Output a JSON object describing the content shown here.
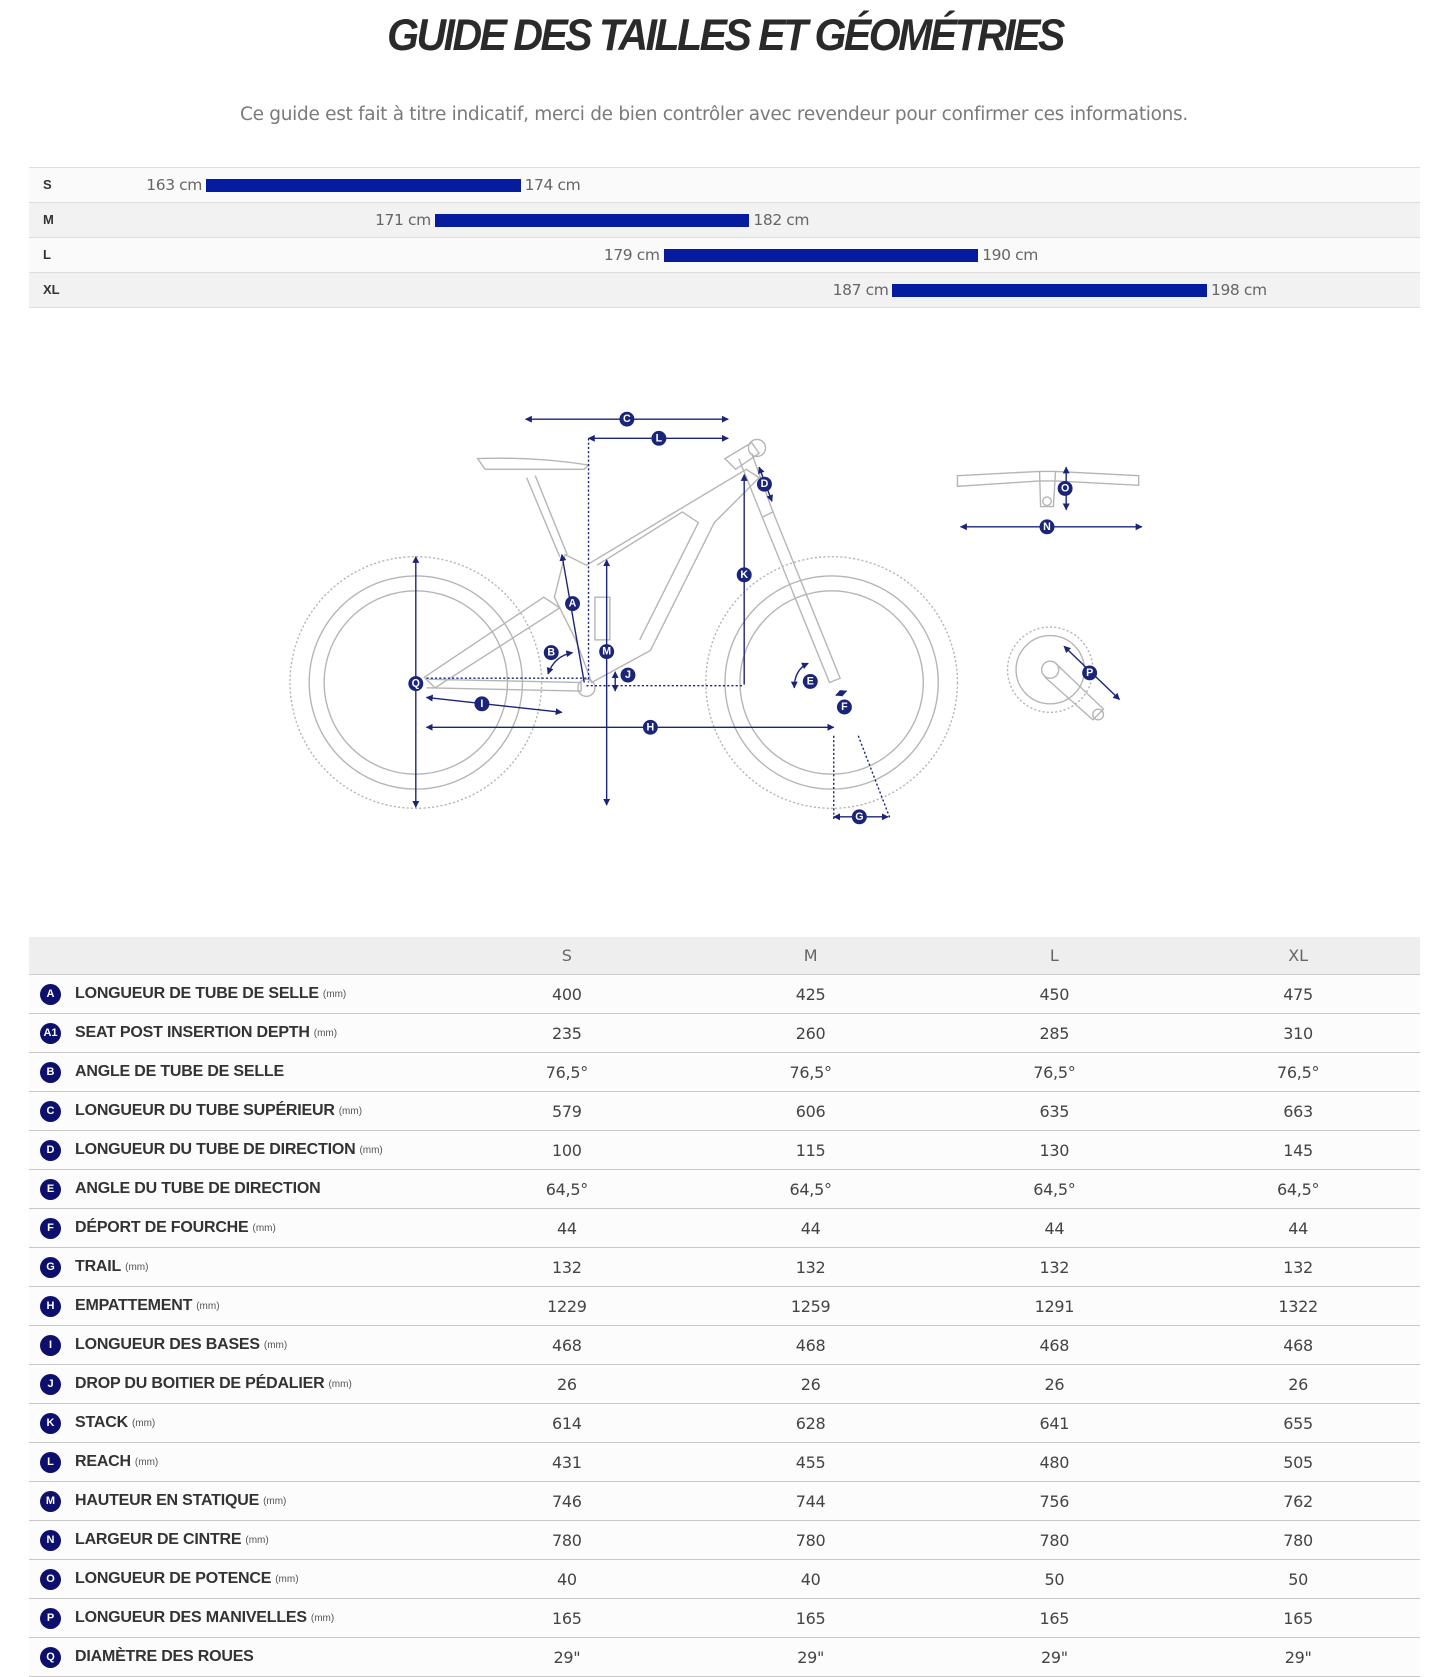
{
  "title": "GUIDE DES TAILLES ET GÉOMÉTRIES",
  "subtitle": "Ce guide est fait à titre indicatif, merci de bien contrôler avec revendeur pour confirmer ces informations.",
  "colors": {
    "bar": "#061c9e",
    "badge": "#0c0f6c",
    "diagram_line": "#1a2478"
  },
  "size_ranges": [
    {
      "size": "S",
      "min": 163,
      "max": 174,
      "min_label": "163 cm",
      "max_label": "174 cm"
    },
    {
      "size": "M",
      "min": 171,
      "max": 182,
      "min_label": "171 cm",
      "max_label": "182 cm"
    },
    {
      "size": "L",
      "min": 179,
      "max": 190,
      "min_label": "179 cm",
      "max_label": "190 cm"
    },
    {
      "size": "XL",
      "min": 187,
      "max": 198,
      "min_label": "187 cm",
      "max_label": "198 cm"
    }
  ],
  "diagram": {
    "labels": {
      "A": "A",
      "B": "B",
      "C": "C",
      "D": "D",
      "E": "E",
      "F": "F",
      "G": "G",
      "H": "H",
      "I": "I",
      "J": "J",
      "K": "K",
      "L": "L",
      "M": "M",
      "N": "N",
      "O": "O",
      "P": "P",
      "Q": "Q"
    }
  },
  "geometry": {
    "columns": [
      "S",
      "M",
      "L",
      "XL"
    ],
    "rows": [
      {
        "letter": "A",
        "label": "LONGUEUR DE TUBE DE SELLE",
        "unit": "(mm)",
        "values": [
          "400",
          "425",
          "450",
          "475"
        ]
      },
      {
        "letter": "A1",
        "label": "SEAT POST INSERTION DEPTH",
        "unit": "(mm)",
        "values": [
          "235",
          "260",
          "285",
          "310"
        ]
      },
      {
        "letter": "B",
        "label": "ANGLE DE TUBE DE SELLE",
        "unit": "",
        "values": [
          "76,5°",
          "76,5°",
          "76,5°",
          "76,5°"
        ]
      },
      {
        "letter": "C",
        "label": "LONGUEUR DU TUBE SUPÉRIEUR",
        "unit": "(mm)",
        "values": [
          "579",
          "606",
          "635",
          "663"
        ]
      },
      {
        "letter": "D",
        "label": "LONGUEUR DU TUBE DE DIRECTION",
        "unit": "(mm)",
        "values": [
          "100",
          "115",
          "130",
          "145"
        ]
      },
      {
        "letter": "E",
        "label": "ANGLE DU TUBE DE DIRECTION",
        "unit": "",
        "values": [
          "64,5°",
          "64,5°",
          "64,5°",
          "64,5°"
        ]
      },
      {
        "letter": "F",
        "label": "DÉPORT DE FOURCHE",
        "unit": "(mm)",
        "values": [
          "44",
          "44",
          "44",
          "44"
        ]
      },
      {
        "letter": "G",
        "label": "TRAIL",
        "unit": "(mm)",
        "values": [
          "132",
          "132",
          "132",
          "132"
        ]
      },
      {
        "letter": "H",
        "label": "EMPATTEMENT",
        "unit": "(mm)",
        "values": [
          "1229",
          "1259",
          "1291",
          "1322"
        ]
      },
      {
        "letter": "I",
        "label": "LONGUEUR DES BASES",
        "unit": "(mm)",
        "values": [
          "468",
          "468",
          "468",
          "468"
        ]
      },
      {
        "letter": "J",
        "label": "DROP DU BOITIER DE PÉDALIER",
        "unit": "(mm)",
        "values": [
          "26",
          "26",
          "26",
          "26"
        ]
      },
      {
        "letter": "K",
        "label": "STACK",
        "unit": "(mm)",
        "values": [
          "614",
          "628",
          "641",
          "655"
        ]
      },
      {
        "letter": "L",
        "label": "REACH",
        "unit": "(mm)",
        "values": [
          "431",
          "455",
          "480",
          "505"
        ]
      },
      {
        "letter": "M",
        "label": "HAUTEUR EN STATIQUE",
        "unit": "(mm)",
        "values": [
          "746",
          "744",
          "756",
          "762"
        ]
      },
      {
        "letter": "N",
        "label": "LARGEUR DE CINTRE",
        "unit": "(mm)",
        "values": [
          "780",
          "780",
          "780",
          "780"
        ]
      },
      {
        "letter": "O",
        "label": "LONGUEUR DE POTENCE",
        "unit": "(mm)",
        "values": [
          "40",
          "40",
          "50",
          "50"
        ]
      },
      {
        "letter": "P",
        "label": "LONGUEUR DES MANIVELLES",
        "unit": "(mm)",
        "values": [
          "165",
          "165",
          "165",
          "165"
        ]
      },
      {
        "letter": "Q",
        "label": "DIAMÈTRE DES ROUES",
        "unit": "",
        "values": [
          "29\"",
          "29\"",
          "29\"",
          "29\""
        ]
      }
    ]
  }
}
